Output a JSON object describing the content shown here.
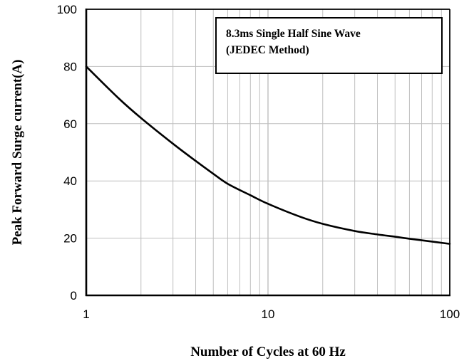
{
  "chart_data": {
    "type": "line",
    "xscale": "log",
    "xlim": [
      1,
      100
    ],
    "ylim": [
      0,
      100
    ],
    "xticks": [
      "1",
      "10",
      "100"
    ],
    "yticks": [
      "0",
      "20",
      "40",
      "60",
      "80",
      "100"
    ],
    "xlabel": "Number of Cycles at 60 Hz",
    "ylabel": "Peak Forward Surge current(A)",
    "grid": true,
    "annotation": [
      "8.3ms Single Half Sine Wave",
      "(JEDEC Method)"
    ],
    "series": [
      {
        "x": [
          1,
          1.5,
          2,
          3,
          4,
          5,
          6,
          8,
          10,
          15,
          20,
          30,
          40,
          50,
          60,
          80,
          100
        ],
        "y": [
          80,
          69,
          62,
          53,
          47,
          42.5,
          39,
          35,
          32,
          27.5,
          25,
          22.5,
          21.3,
          20.5,
          19.8,
          18.8,
          18
        ]
      }
    ],
    "colors": {
      "line": "#000000",
      "grid": "#bfbfbf",
      "frame": "#000000"
    }
  }
}
